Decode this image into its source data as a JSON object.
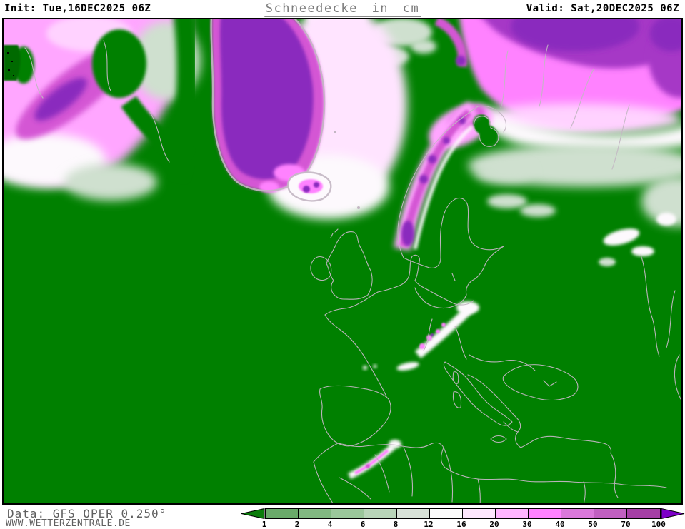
{
  "header": {
    "init_label": "Init: Tue,16DEC2025 06Z",
    "title": "Schneedecke in cm",
    "valid_label": "Valid: Sat,20DEC2025 06Z"
  },
  "footer": {
    "data_source": "Data: GFS OPER 0.250°",
    "website": "WWW.WETTERZENTRALE.DE"
  },
  "legend": {
    "unit": "cm",
    "ticks": [
      "1",
      "2",
      "4",
      "6",
      "8",
      "12",
      "16",
      "20",
      "30",
      "40",
      "50",
      "70",
      "100"
    ],
    "box_colors": [
      "#6aaa6a",
      "#81b881",
      "#9bc79b",
      "#b9d5b9",
      "#d8e2d8",
      "#fbfbfb",
      "#fde6fd",
      "#ffb5ff",
      "#ff82ff",
      "#da78da",
      "#c160c1",
      "#a53ea5"
    ],
    "underflow_color": "#0a7c0a",
    "overflow_color": "#7d00c8"
  },
  "map": {
    "background_color": "#008000",
    "coastline_color": "#c3b6c3",
    "border_color": "#000000",
    "palette": {
      "bg": "#008000",
      "coast": "#c3b6c3",
      "deep": "#8a2abe",
      "darkm": "#a637c6",
      "mag": "#d457d4",
      "bright": "#ff82ff",
      "pink": "#ffa6ff",
      "lpink": "#ffd2ff",
      "white": "#fdf9fd",
      "pgreen": "#cfe0cf",
      "dgreen": "#056a05",
      "halo": "#ffe4ff"
    }
  }
}
